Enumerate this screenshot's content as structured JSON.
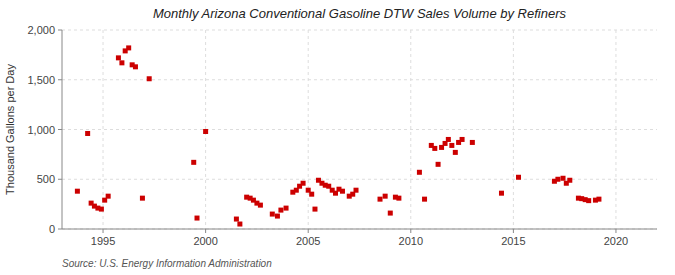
{
  "chart_data": {
    "type": "scatter",
    "title": "Monthly Arizona Conventional Gasoline DTW Sales Volume by Refiners",
    "y_label": "Thousand Gallons per Day",
    "source": "Source: U.S. Energy Information Administration",
    "color": "#cc0000",
    "marker": "square",
    "grid": true,
    "xlim": [
      1993.0,
      2022.0
    ],
    "ylim": [
      0,
      2000
    ],
    "xticks": [
      1995,
      2000,
      2005,
      2010,
      2015,
      2020
    ],
    "yticks": [
      0,
      500,
      {
        "value": 1000,
        "label": "1,000"
      },
      {
        "value": 1500,
        "label": "1,500"
      },
      {
        "value": 2000,
        "label": "2,000"
      }
    ],
    "x": [
      1993.75,
      1994.25,
      1994.42,
      1994.58,
      1994.75,
      1994.92,
      1995.08,
      1995.25,
      1995.75,
      1995.92,
      1996.08,
      1996.25,
      1996.42,
      1996.58,
      1996.92,
      1997.25,
      1999.42,
      1999.58,
      2000.0,
      2001.5,
      2001.67,
      2002.0,
      2002.17,
      2002.33,
      2002.5,
      2002.67,
      2003.25,
      2003.5,
      2003.67,
      2003.92,
      2004.25,
      2004.42,
      2004.58,
      2004.75,
      2005.0,
      2005.17,
      2005.33,
      2005.5,
      2005.67,
      2005.83,
      2006.0,
      2006.17,
      2006.33,
      2006.5,
      2006.67,
      2007.0,
      2007.17,
      2007.33,
      2008.5,
      2008.75,
      2009.0,
      2009.25,
      2009.42,
      2010.42,
      2010.67,
      2011.0,
      2011.17,
      2011.33,
      2011.5,
      2011.67,
      2011.83,
      2012.0,
      2012.17,
      2012.33,
      2012.5,
      2013.0,
      2014.42,
      2015.25,
      2017.0,
      2017.17,
      2017.42,
      2017.58,
      2017.75,
      2018.17,
      2018.33,
      2018.5,
      2018.67,
      2019.0,
      2019.17
    ],
    "values": [
      380,
      960,
      260,
      230,
      210,
      200,
      290,
      330,
      1720,
      1670,
      1790,
      1820,
      1650,
      1630,
      310,
      1510,
      670,
      110,
      980,
      100,
      50,
      320,
      310,
      290,
      260,
      240,
      150,
      130,
      190,
      210,
      370,
      390,
      430,
      460,
      390,
      350,
      200,
      490,
      460,
      440,
      430,
      390,
      360,
      400,
      380,
      330,
      350,
      390,
      300,
      330,
      160,
      320,
      310,
      570,
      300,
      840,
      810,
      650,
      820,
      860,
      900,
      840,
      770,
      870,
      900,
      870,
      360,
      520,
      480,
      500,
      510,
      460,
      490,
      310,
      305,
      295,
      285,
      290,
      300
    ]
  }
}
